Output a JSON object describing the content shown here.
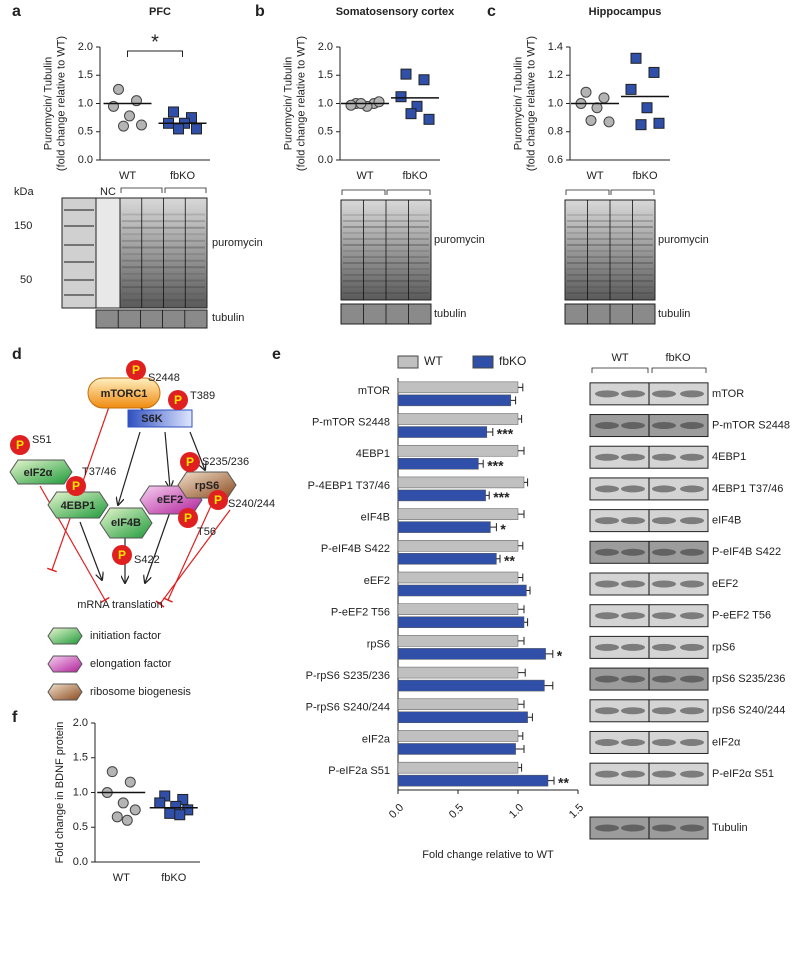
{
  "chart_data": [
    {
      "type": "dotplot",
      "panel_label": "a",
      "title": "PFC",
      "ylabel": [
        "Puromycin/ Tubulin",
        "(fold change relative to WT)"
      ],
      "categories": [
        "WT",
        "fbKO"
      ],
      "colors": [
        "#b4b4b4",
        "#2f4fa8"
      ],
      "markers": [
        "circle",
        "square"
      ],
      "values": [
        [
          1.25,
          1.05,
          0.95,
          0.78,
          0.62,
          0.6
        ],
        [
          0.85,
          0.75,
          0.65,
          0.65,
          0.55,
          0.55
        ]
      ],
      "means": [
        1.0,
        0.65
      ],
      "annotation": "*",
      "ylim": [
        0,
        2.0
      ],
      "yticks": [
        {
          "value": 0,
          "label": "0.0"
        },
        {
          "value": 0.5,
          "label": "0.5"
        },
        {
          "value": 1.0,
          "label": "1.0"
        },
        {
          "value": 1.5,
          "label": "1.5"
        },
        {
          "value": 2.0,
          "label": "2.0"
        }
      ]
    },
    {
      "type": "dotplot",
      "panel_label": "b",
      "title": "Somatosensory cortex",
      "ylabel": [
        "Puromycin/ Tubulin",
        "(fold change relative to WT)"
      ],
      "categories": [
        "WT",
        "fbKO"
      ],
      "colors": [
        "#b4b4b4",
        "#2f4fa8"
      ],
      "markers": [
        "circle",
        "square"
      ],
      "values": [
        [
          1.0,
          1.0,
          0.97,
          0.95,
          1.03,
          1.0
        ],
        [
          1.52,
          1.42,
          1.12,
          0.95,
          0.72,
          0.82
        ]
      ],
      "means": [
        1.0,
        1.1
      ],
      "ylim": [
        0,
        2.0
      ],
      "yticks": [
        {
          "value": 0,
          "label": "0.0"
        },
        {
          "value": 0.5,
          "label": "0.5"
        },
        {
          "value": 1.0,
          "label": "1.0"
        },
        {
          "value": 1.5,
          "label": "1.5"
        },
        {
          "value": 2.0,
          "label": "2.0"
        }
      ]
    },
    {
      "type": "dotplot",
      "panel_label": "c",
      "title": "Hippocampus",
      "ylabel": [
        "Puromycin/ Tubulin",
        "(fold change relative to WT)"
      ],
      "categories": [
        "WT",
        "fbKO"
      ],
      "colors": [
        "#b4b4b4",
        "#2f4fa8"
      ],
      "markers": [
        "circle",
        "square"
      ],
      "values": [
        [
          1.08,
          1.04,
          1.0,
          0.97,
          0.87,
          0.88
        ],
        [
          1.32,
          1.22,
          1.1,
          0.97,
          0.86,
          0.85
        ]
      ],
      "means": [
        1.0,
        1.05
      ],
      "ylim": [
        0.6,
        1.4
      ],
      "yticks": [
        0.6,
        0.8,
        {
          "value": 1.0,
          "label": "1.0"
        },
        1.2,
        1.4
      ]
    },
    {
      "type": "hbar",
      "panel_label": "e",
      "xlabel": "Fold change relative to WT",
      "categories": [
        "mTOR",
        "P-mTOR S2448",
        "4EBP1",
        "P-4EBP1 T37/46",
        "eIF4B",
        "P-eIF4B S422",
        "eEF2",
        "P-eEF2 T56",
        "rpS6",
        "P-rpS6 S235/236",
        "P-rpS6 S240/244",
        "eIF2a",
        "P-eIF2a S51"
      ],
      "series": [
        {
          "name": "WT",
          "color": "#c0c0c0",
          "values": [
            1.0,
            1.0,
            1.0,
            1.05,
            1.0,
            1.0,
            1.0,
            1.0,
            1.0,
            1.0,
            1.0,
            1.0,
            1.0
          ],
          "errors": [
            0.04,
            0.03,
            0.05,
            0.03,
            0.05,
            0.04,
            0.04,
            0.05,
            0.05,
            0.06,
            0.05,
            0.04,
            0.03
          ]
        },
        {
          "name": "fbKO",
          "color": "#2f4fa8",
          "values": [
            0.94,
            0.74,
            0.67,
            0.73,
            0.77,
            0.82,
            1.07,
            1.05,
            1.23,
            1.22,
            1.08,
            0.98,
            1.25
          ],
          "errors": [
            0.04,
            0.05,
            0.04,
            0.03,
            0.05,
            0.03,
            0.03,
            0.03,
            0.06,
            0.07,
            0.04,
            0.07,
            0.05
          ]
        }
      ],
      "significance": [
        null,
        "***",
        "***",
        "***",
        "*",
        "**",
        null,
        null,
        "*",
        null,
        null,
        null,
        "**"
      ],
      "xlim": [
        0,
        1.5
      ],
      "xticks": [
        {
          "value": 0,
          "label": "0.0"
        },
        0.5,
        {
          "value": 1.0,
          "label": "1.0"
        },
        1.5
      ]
    },
    {
      "type": "dotplot",
      "panel_label": "f",
      "ylabel": "Fold change in BDNF protein",
      "categories": [
        "WT",
        "fbKO"
      ],
      "colors": [
        "#b4b4b4",
        "#2f4fa8"
      ],
      "markers": [
        "circle",
        "square"
      ],
      "values": [
        [
          1.3,
          1.15,
          1.0,
          0.85,
          0.75,
          0.65,
          0.6
        ],
        [
          0.95,
          0.9,
          0.85,
          0.8,
          0.75,
          0.7,
          0.68
        ]
      ],
      "means": [
        1.0,
        0.78
      ],
      "ylim": [
        0,
        2.0
      ],
      "yticks": [
        {
          "value": 0,
          "label": "0.0"
        },
        {
          "value": 0.5,
          "label": "0.5"
        },
        {
          "value": 1.0,
          "label": "1.0"
        },
        {
          "value": 1.5,
          "label": "1.5"
        },
        {
          "value": 2.0,
          "label": "2.0"
        }
      ]
    }
  ],
  "blots": [
    {
      "kda_label": "kDa",
      "kda_marks": [
        "150",
        "50"
      ],
      "control_label": "NC",
      "bands": [
        "puromycin",
        "tubulin"
      ]
    },
    {
      "bands": [
        "puromycin",
        "tubulin"
      ]
    },
    {
      "bands": [
        "puromycin",
        "tubulin"
      ]
    },
    {
      "groups": [
        "WT",
        "fbKO"
      ],
      "bands": [
        "mTOR",
        "P-mTOR S2448",
        "4EBP1",
        "4EBP1 T37/46",
        "eIF4B",
        "P-eIF4B S422",
        "eEF2",
        "P-eEF2 T56",
        "rpS6",
        "rpS6 S235/236",
        "rpS6 S240/244",
        "eIF2α",
        "P-eIF2α S51",
        "Tubulin"
      ]
    }
  ],
  "diagram": {
    "panel_label": "d",
    "phospho_symbol": "P",
    "nodes": [
      {
        "label": "mTORC1",
        "site": "S2448"
      },
      {
        "label": "S6K",
        "site": "T389"
      },
      {
        "label": "eIF2α",
        "site": "S51"
      },
      {
        "label": "4EBP1",
        "site": "T37/46"
      },
      {
        "label": "eIF4B",
        "site": "S422"
      },
      {
        "label": "eEF2",
        "site": "T56"
      },
      {
        "label": "rpS6",
        "sites": [
          "S235/236",
          "S240/244"
        ]
      }
    ],
    "output": "mRNA translation",
    "legend": [
      "initiation factor",
      "elongation factor",
      "ribosome biogenesis"
    ]
  }
}
